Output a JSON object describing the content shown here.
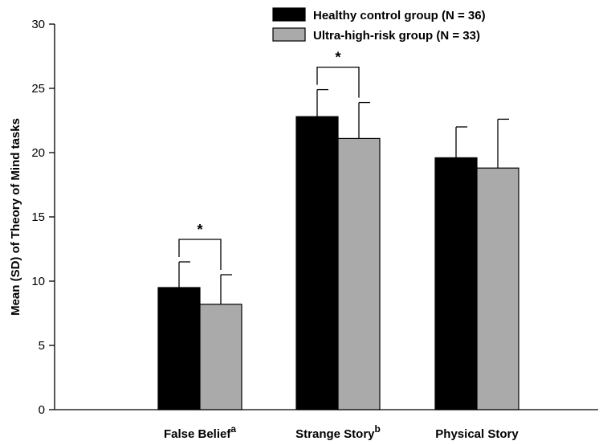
{
  "chart_data": {
    "type": "bar",
    "title": "",
    "ylabel": "Mean (SD) of Theory of Mind tasks",
    "xlabel": "",
    "ylim": [
      0,
      30
    ],
    "yticks": [
      "0",
      "5",
      "10",
      "15",
      "20",
      "25",
      "30"
    ],
    "categories": [
      {
        "label": "False Belief",
        "sup": "a"
      },
      {
        "label": "Strange Story",
        "sup": "b"
      },
      {
        "label": "Physical Story",
        "sup": ""
      }
    ],
    "series": [
      {
        "name": "Healthy control group (N = 36)",
        "color": "#000000",
        "values": [
          9.5,
          22.8,
          19.6
        ],
        "sd": [
          2.0,
          2.1,
          2.4
        ]
      },
      {
        "name": "Ultra-high-risk group (N = 33)",
        "color": "#aaaaaa",
        "values": [
          8.2,
          21.1,
          18.8
        ],
        "sd": [
          2.3,
          2.8,
          3.8
        ]
      }
    ],
    "significance": [
      {
        "category": 0,
        "label": "*"
      },
      {
        "category": 1,
        "label": "*"
      }
    ],
    "legend_position": "top-right",
    "grid": false
  }
}
